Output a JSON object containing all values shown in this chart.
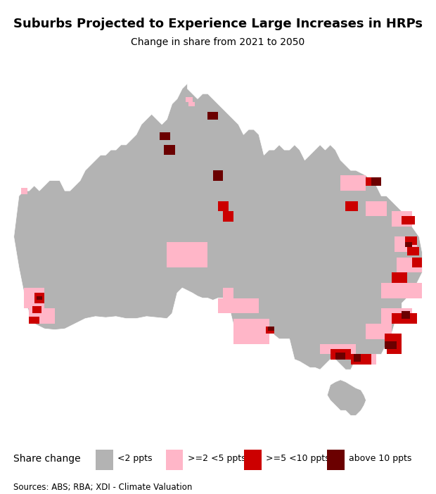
{
  "title": "Suburbs Projected to Experience Large Increases in HRPs",
  "subtitle": "Change in share from 2021 to 2050",
  "source_text": "Sources: ABS; RBA; XDI - Climate Valuation",
  "legend_title": "Share change",
  "legend_labels": [
    "<2 ppts",
    ">=2 <5 ppts",
    ">=5 <10 ppts",
    "above 10 ppts"
  ],
  "legend_colors": [
    "#b3b3b3",
    "#ffb6c8",
    "#cc0000",
    "#6b0000"
  ],
  "background_color": "#ffffff",
  "map_default_color": "#b3b3b3",
  "title_fontsize": 13,
  "subtitle_fontsize": 10,
  "source_fontsize": 8.5,
  "figsize": [
    6.2,
    7.02
  ],
  "dpi": 100,
  "map_xlim": [
    113,
    154
  ],
  "map_ylim": [
    -44,
    -10
  ]
}
